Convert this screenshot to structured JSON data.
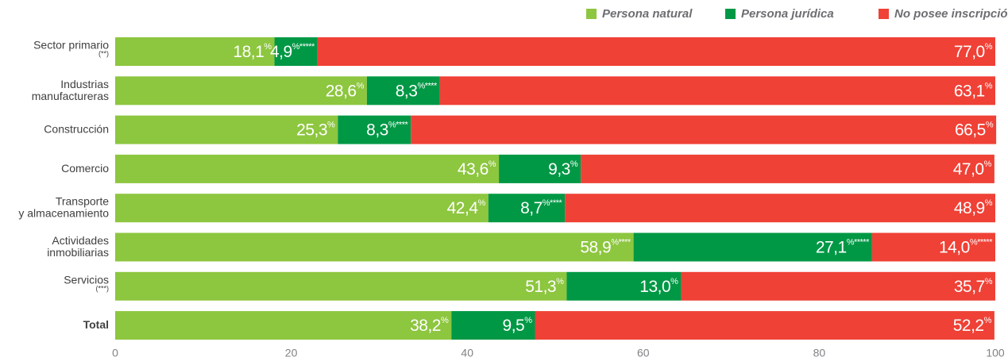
{
  "chart_data": {
    "type": "stacked-barh",
    "categories": [
      "Sector primario\n(**)",
      "Industrias\nmanufactureras",
      "Construcción",
      "Comercio",
      "Transporte\ny almacenamiento",
      "Actividades\ninmobiliarias",
      "Servicios\n(***)",
      "Total"
    ],
    "series": [
      {
        "name": "Persona natural",
        "color": "#8dc63f",
        "values": [
          18.1,
          28.6,
          25.3,
          43.6,
          42.4,
          58.9,
          51.3,
          38.2
        ],
        "value_labels": [
          "18,1%",
          "28,6%",
          "25,3%",
          "43,6%",
          "42,4%",
          "58,9%****",
          "51,3%",
          "38,2%"
        ]
      },
      {
        "name": "Persona jurídica",
        "color": "#009845",
        "values": [
          4.9,
          8.3,
          8.3,
          9.3,
          8.7,
          27.1,
          13.0,
          9.5
        ],
        "value_labels": [
          "4,9%*****",
          "8,3%****",
          "8,3%****",
          "9,3%",
          "8,7%****",
          "27,1%*****",
          "13,0%",
          "9,5%"
        ]
      },
      {
        "name": "No posee inscripción",
        "color": "#ef4136",
        "values": [
          77.0,
          63.1,
          66.5,
          47.0,
          48.9,
          14.0,
          35.7,
          52.2
        ],
        "value_labels": [
          "77,0%",
          "63,1%",
          "66,5%",
          "47,0%",
          "48,9%",
          "14,0%*****",
          "35,7%",
          "52,2%"
        ]
      }
    ],
    "xlim": [
      0,
      100
    ],
    "xticks": [
      0,
      20,
      40,
      60,
      80,
      100
    ],
    "legend": "top-right"
  }
}
